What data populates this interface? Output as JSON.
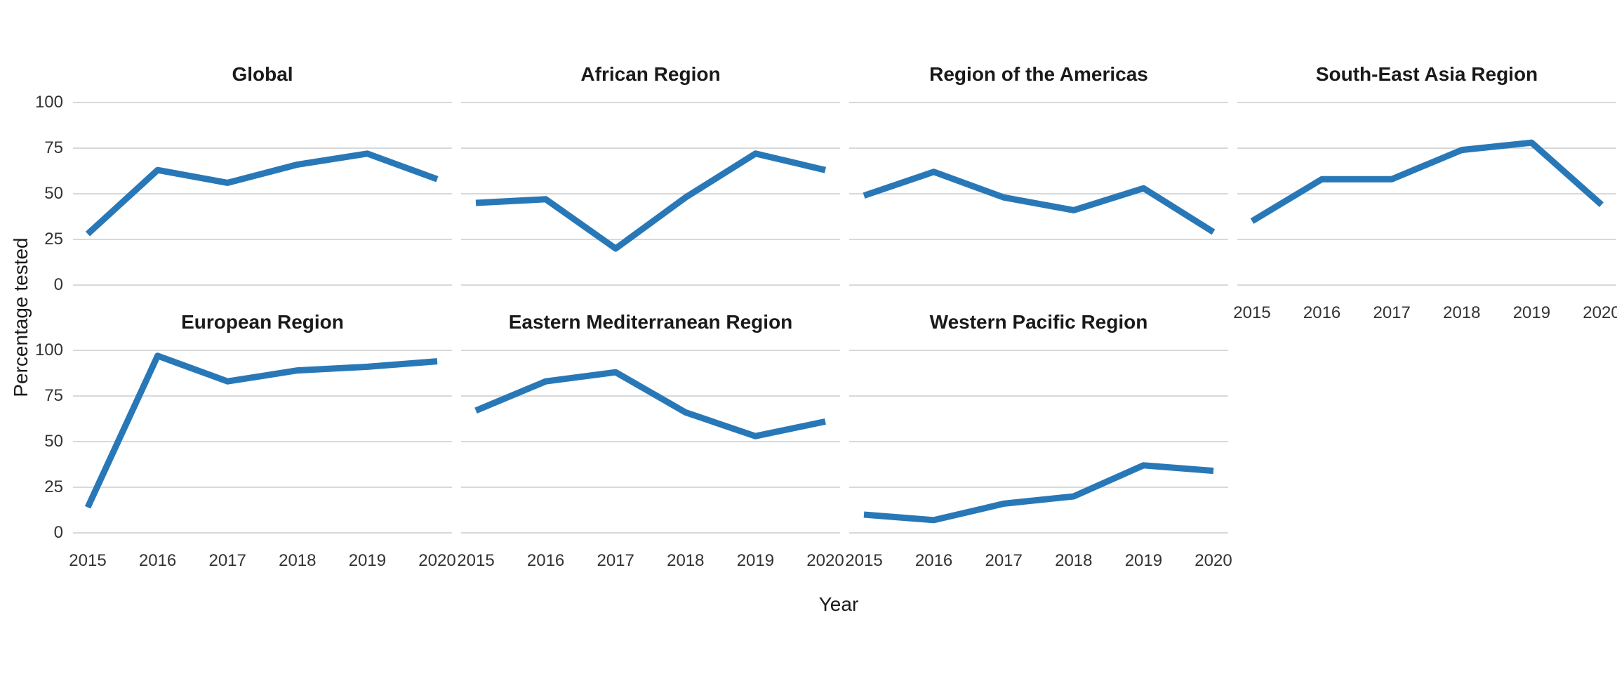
{
  "chart_data": {
    "type": "line",
    "description": "Faceted line chart of percentage tested by year for WHO regions",
    "x": [
      "2015",
      "2016",
      "2017",
      "2018",
      "2019",
      "2020"
    ],
    "xlabel": "Year",
    "ylabel": "Percentage tested",
    "ylim": [
      0,
      100
    ],
    "yticks": [
      0,
      25,
      50,
      75,
      100
    ],
    "grid": "horizontal-major-only",
    "legend_position": "none",
    "line_color": "#2878B8",
    "gridline_color": "#D9D9D9",
    "facets": [
      {
        "title": "Global",
        "values": [
          28,
          63,
          56,
          66,
          72,
          58
        ]
      },
      {
        "title": "African Region",
        "values": [
          45,
          47,
          20,
          48,
          72,
          63
        ]
      },
      {
        "title": "Region of the Americas",
        "values": [
          49,
          62,
          48,
          41,
          53,
          29
        ]
      },
      {
        "title": "South-East Asia Region",
        "values": [
          35,
          58,
          58,
          74,
          78,
          44
        ]
      },
      {
        "title": "European Region",
        "values": [
          14,
          97,
          83,
          89,
          91,
          94
        ]
      },
      {
        "title": "Eastern Mediterranean Region",
        "values": [
          67,
          83,
          88,
          66,
          53,
          61
        ]
      },
      {
        "title": "Western Pacific Region",
        "values": [
          10,
          7,
          16,
          20,
          37,
          34
        ]
      }
    ]
  }
}
